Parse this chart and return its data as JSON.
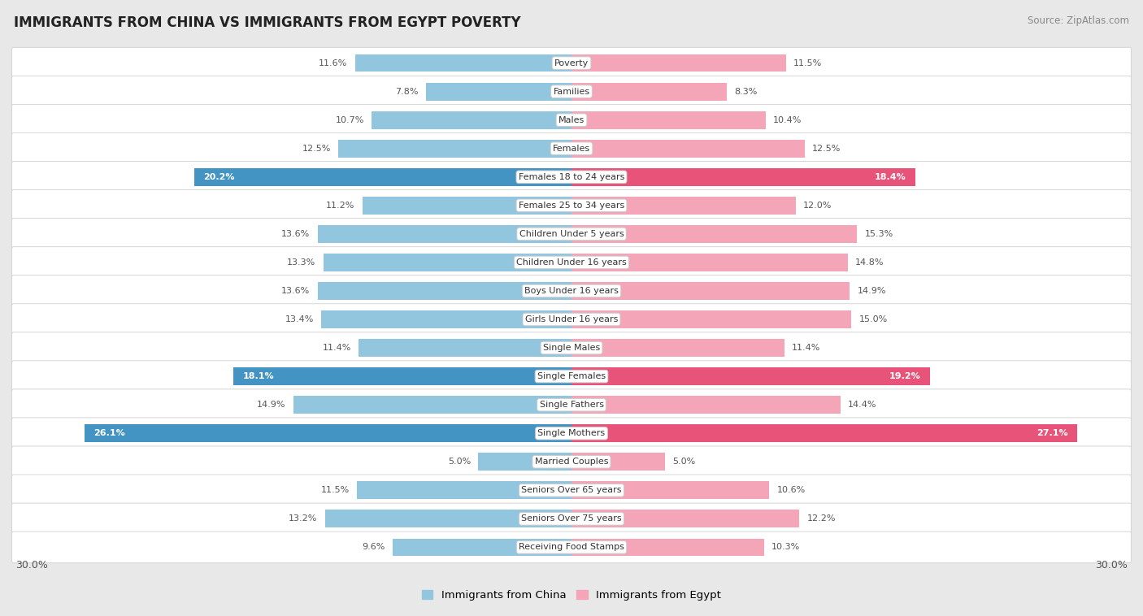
{
  "title": "IMMIGRANTS FROM CHINA VS IMMIGRANTS FROM EGYPT POVERTY",
  "source": "Source: ZipAtlas.com",
  "categories": [
    "Poverty",
    "Families",
    "Males",
    "Females",
    "Females 18 to 24 years",
    "Females 25 to 34 years",
    "Children Under 5 years",
    "Children Under 16 years",
    "Boys Under 16 years",
    "Girls Under 16 years",
    "Single Males",
    "Single Females",
    "Single Fathers",
    "Single Mothers",
    "Married Couples",
    "Seniors Over 65 years",
    "Seniors Over 75 years",
    "Receiving Food Stamps"
  ],
  "china_values": [
    11.6,
    7.8,
    10.7,
    12.5,
    20.2,
    11.2,
    13.6,
    13.3,
    13.6,
    13.4,
    11.4,
    18.1,
    14.9,
    26.1,
    5.0,
    11.5,
    13.2,
    9.6
  ],
  "egypt_values": [
    11.5,
    8.3,
    10.4,
    12.5,
    18.4,
    12.0,
    15.3,
    14.8,
    14.9,
    15.0,
    11.4,
    19.2,
    14.4,
    27.1,
    5.0,
    10.6,
    12.2,
    10.3
  ],
  "china_highlight": [
    false,
    false,
    false,
    false,
    true,
    false,
    false,
    false,
    false,
    false,
    false,
    true,
    false,
    true,
    false,
    false,
    false,
    false
  ],
  "egypt_highlight": [
    false,
    false,
    false,
    false,
    true,
    false,
    false,
    false,
    false,
    false,
    false,
    true,
    false,
    true,
    false,
    false,
    false,
    false
  ],
  "china_color_normal": "#92c5de",
  "china_color_highlight": "#4393c3",
  "egypt_color_normal": "#f4a6b8",
  "egypt_color_highlight": "#e8537a",
  "xlim": 30.0,
  "background_color": "#e8e8e8",
  "row_bg_color": "#ffffff",
  "legend_label_china": "Immigrants from China",
  "legend_label_egypt": "Immigrants from Egypt"
}
